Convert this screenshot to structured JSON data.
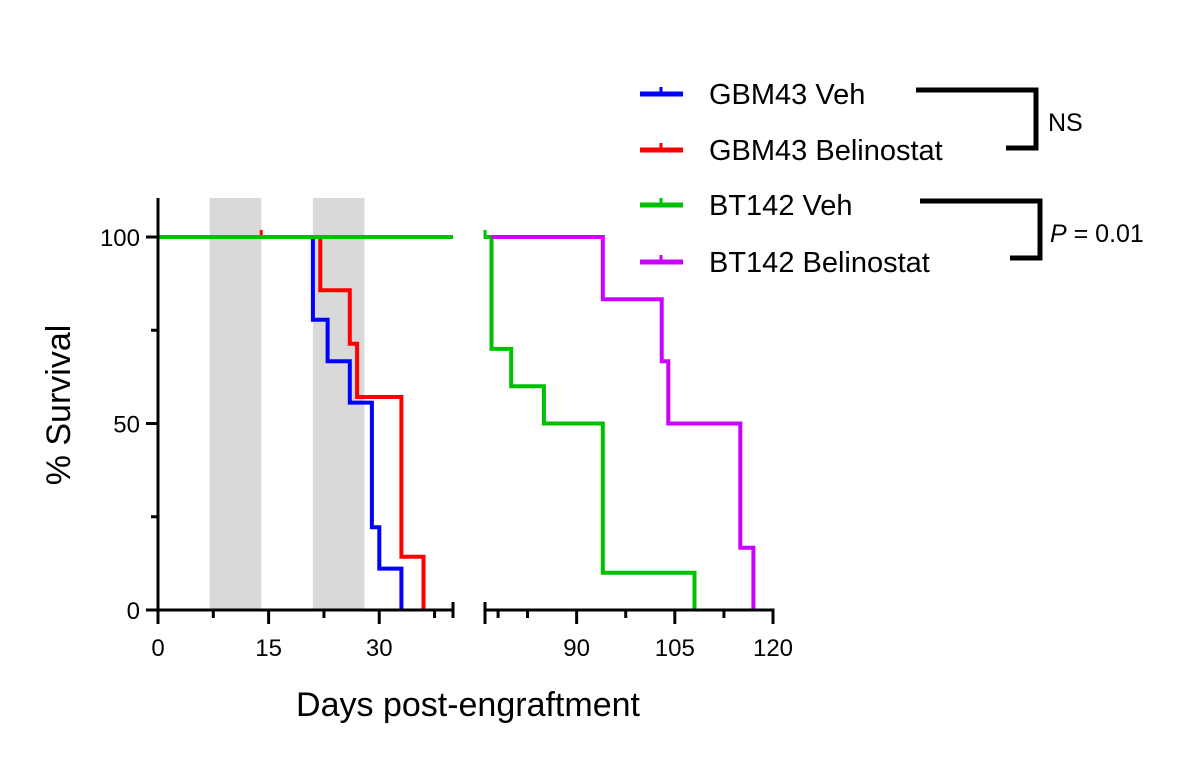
{
  "chart_data": {
    "type": "line",
    "subtype": "kaplan-meier",
    "title": "",
    "xlabel": "Days post-engraftment",
    "ylabel": "% Survival",
    "ylim": [
      0,
      100
    ],
    "yticks": [
      0,
      50,
      100
    ],
    "y_minor_ticks": [
      25,
      75
    ],
    "x_segments": [
      {
        "xlim": [
          0,
          40
        ],
        "ticks": [
          0,
          15,
          30
        ],
        "tick_labels": [
          "0",
          "15",
          "30"
        ],
        "minor_ticks": [
          7.5,
          22.5,
          37.5,
          40
        ]
      },
      {
        "xlim": [
          76,
          120
        ],
        "ticks": [
          90,
          105,
          120
        ],
        "tick_labels": [
          "90",
          "105",
          "120"
        ],
        "minor_ticks": [
          78,
          82.5,
          97.5,
          112.5
        ]
      }
    ],
    "treatment_windows": [
      [
        7,
        14
      ],
      [
        21,
        28
      ]
    ],
    "series": [
      {
        "name": "GBM43 Veh",
        "color": "#0000ff",
        "steps": [
          [
            0,
            100
          ],
          [
            21,
            100
          ],
          [
            21,
            77.8
          ],
          [
            23,
            77.8
          ],
          [
            23,
            66.7
          ],
          [
            26,
            66.7
          ],
          [
            26,
            55.6
          ],
          [
            29,
            55.6
          ],
          [
            29,
            22.2
          ],
          [
            30,
            22.2
          ],
          [
            30,
            11.1
          ],
          [
            33,
            11.1
          ],
          [
            33,
            0
          ]
        ],
        "censored": []
      },
      {
        "name": "GBM43 Belinostat",
        "color": "#ff0000",
        "steps": [
          [
            0,
            100
          ],
          [
            22,
            100
          ],
          [
            22,
            85.7
          ],
          [
            26,
            85.7
          ],
          [
            26,
            71.4
          ],
          [
            27,
            71.4
          ],
          [
            27,
            57.1
          ],
          [
            33,
            57.1
          ],
          [
            33,
            14.3
          ],
          [
            36,
            14.3
          ],
          [
            36,
            0
          ]
        ],
        "censored": [
          14
        ]
      },
      {
        "name": "BT142 Veh",
        "color": "#00c000",
        "steps": [
          [
            0,
            100
          ],
          [
            40,
            100
          ],
          [
            76,
            100
          ],
          [
            77,
            100
          ],
          [
            77,
            70
          ],
          [
            80,
            70
          ],
          [
            80,
            60
          ],
          [
            85,
            60
          ],
          [
            85,
            50
          ],
          [
            94,
            50
          ],
          [
            94,
            10
          ],
          [
            108,
            10
          ],
          [
            108,
            0
          ]
        ],
        "censored": [
          76
        ]
      },
      {
        "name": "BT142 Belinostat",
        "color": "#cc00ff",
        "steps": [
          [
            77,
            100
          ],
          [
            94,
            100
          ],
          [
            94,
            83.3
          ],
          [
            103,
            83.3
          ],
          [
            103,
            66.7
          ],
          [
            104,
            66.7
          ],
          [
            104,
            50
          ],
          [
            115,
            50
          ],
          [
            115,
            16.7
          ],
          [
            117,
            16.7
          ],
          [
            117,
            0
          ]
        ],
        "censored": []
      }
    ],
    "legend": {
      "position": "top-right"
    },
    "comparisons": [
      {
        "groups": [
          "GBM43 Veh",
          "GBM43 Belinostat"
        ],
        "label": "NS"
      },
      {
        "groups": [
          "BT142 Veh",
          "BT142 Belinostat"
        ],
        "label_italic": "P",
        "label_rest": " = 0.01"
      }
    ]
  }
}
